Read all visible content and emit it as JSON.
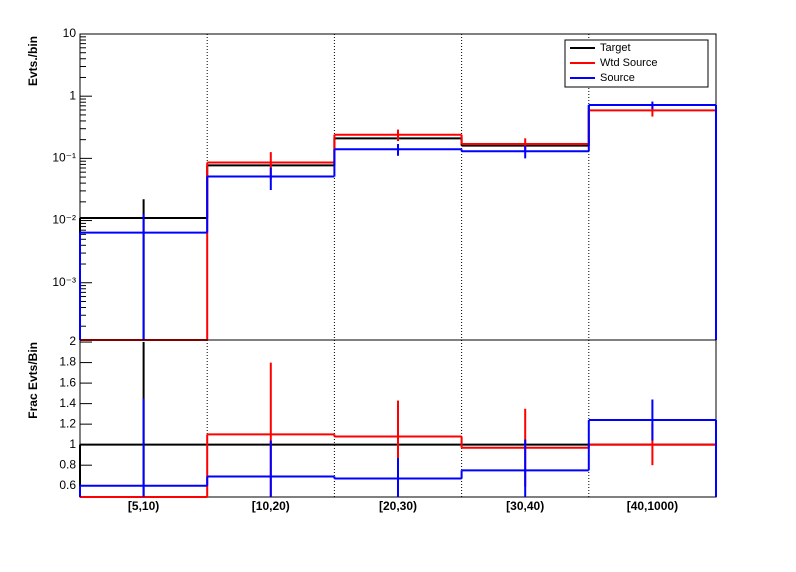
{
  "chart_data": [
    {
      "type": "step",
      "ylabel": "Evts./bin",
      "log_scale": true,
      "ylim": [
        0.00012,
        10
      ],
      "yticks": [
        {
          "value": 0.001,
          "label": "10⁻³"
        },
        {
          "value": 0.01,
          "label": "10⁻²"
        },
        {
          "value": 0.1,
          "label": "10⁻¹"
        },
        1,
        10
      ],
      "legend": "top-right",
      "series": [
        {
          "name": "Target",
          "color": "#000000",
          "values": [
            0.011,
            0.077,
            0.21,
            0.16,
            0.72
          ],
          "errors": [
            0.011,
            0,
            0,
            0,
            0
          ]
        },
        {
          "name": "Wtd Source",
          "color": "#ff0000",
          "values": [
            0,
            0.086,
            0.24,
            0.17,
            0.59
          ],
          "errors": [
            0,
            0.04,
            0.05,
            0.04,
            0.12
          ]
        },
        {
          "name": "Source",
          "color": "#0000ff",
          "values": [
            0.0064,
            0.051,
            0.14,
            0.13,
            0.72
          ],
          "errors": [
            0.0064,
            0.02,
            0.03,
            0.03,
            0.1
          ]
        }
      ]
    },
    {
      "type": "step",
      "ylabel": "Frac Evts/Bin",
      "log_scale": false,
      "categories": [
        "[5,10)",
        "[10,20)",
        "[20,30)",
        "[30,40)",
        "[40,1000)"
      ],
      "ylim": [
        0.49,
        2.02
      ],
      "yticks": [
        0.6,
        0.8,
        1,
        1.2,
        1.4,
        1.6,
        1.8,
        2
      ],
      "series": [
        {
          "color": "#000000",
          "values": [
            1,
            1,
            1,
            1,
            1
          ],
          "errors": [
            1,
            0,
            0,
            0,
            0
          ]
        },
        {
          "color": "#ff0000",
          "values": [
            0,
            1.1,
            1.08,
            0.97,
            1.0
          ],
          "errors": [
            0,
            0.7,
            0.35,
            0.38,
            0.2
          ]
        },
        {
          "color": "#0000ff",
          "values": [
            0.6,
            0.69,
            0.67,
            0.75,
            1.24
          ],
          "errors": [
            0.85,
            0.35,
            0.2,
            0.3,
            0.2
          ]
        }
      ]
    }
  ]
}
